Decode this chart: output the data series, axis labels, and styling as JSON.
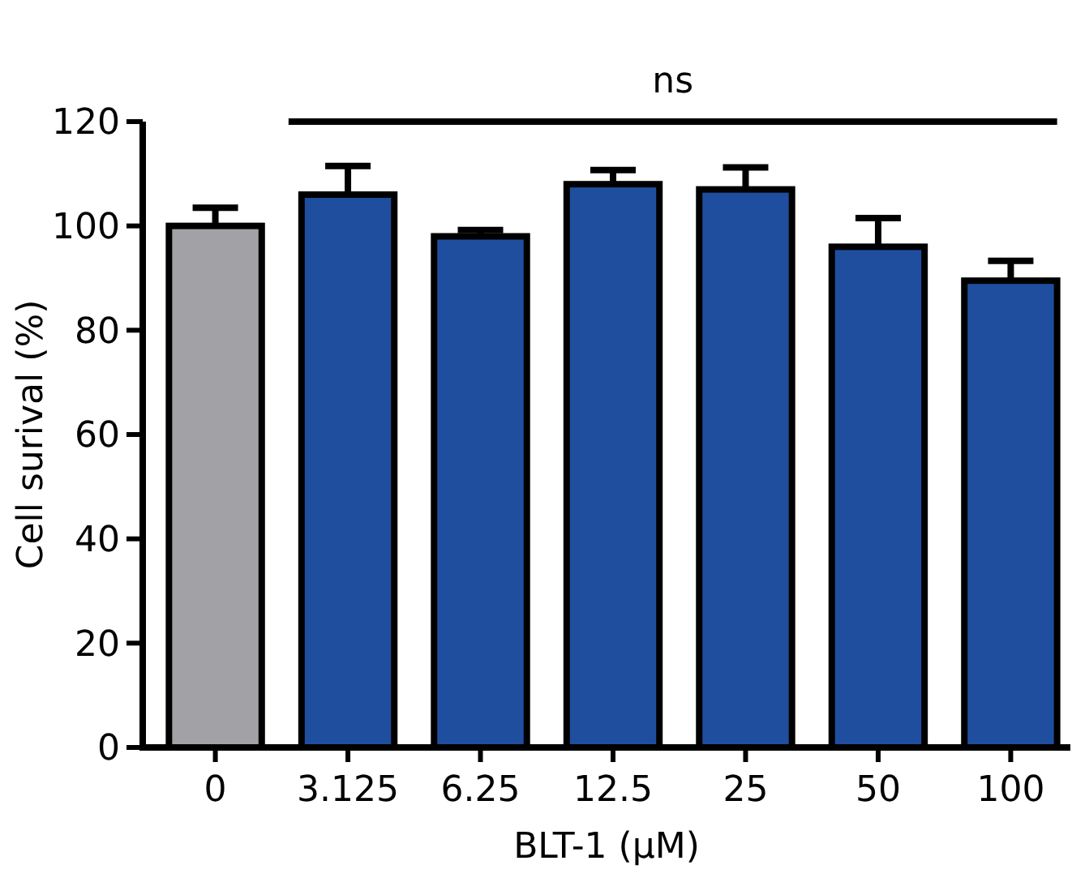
{
  "chart_data": {
    "type": "bar",
    "xlabel": "BLT-1 (μM)",
    "ylabel": "Cell surival (%)",
    "categories": [
      "0",
      "3.125",
      "6.25",
      "12.5",
      "25",
      "50",
      "100"
    ],
    "values": [
      100,
      106,
      98,
      108,
      107,
      96,
      89.5
    ],
    "colors": [
      "#a2a2a6",
      "#1f4e9e",
      "#1f4e9e",
      "#1f4e9e",
      "#1f4e9e",
      "#1f4e9e",
      "#1f4e9e"
    ],
    "errors": [
      [
        100,
        103.5
      ],
      [
        106,
        111.5
      ],
      [
        98,
        99.2
      ],
      [
        108,
        110.7
      ],
      [
        107,
        111.2
      ],
      [
        96,
        101.5
      ],
      [
        89.5,
        93.3
      ]
    ],
    "ylim": [
      0,
      120
    ],
    "yticks": [
      0,
      20,
      40,
      60,
      80,
      100,
      120
    ],
    "grid": false,
    "annotations": [
      "ns"
    ]
  }
}
